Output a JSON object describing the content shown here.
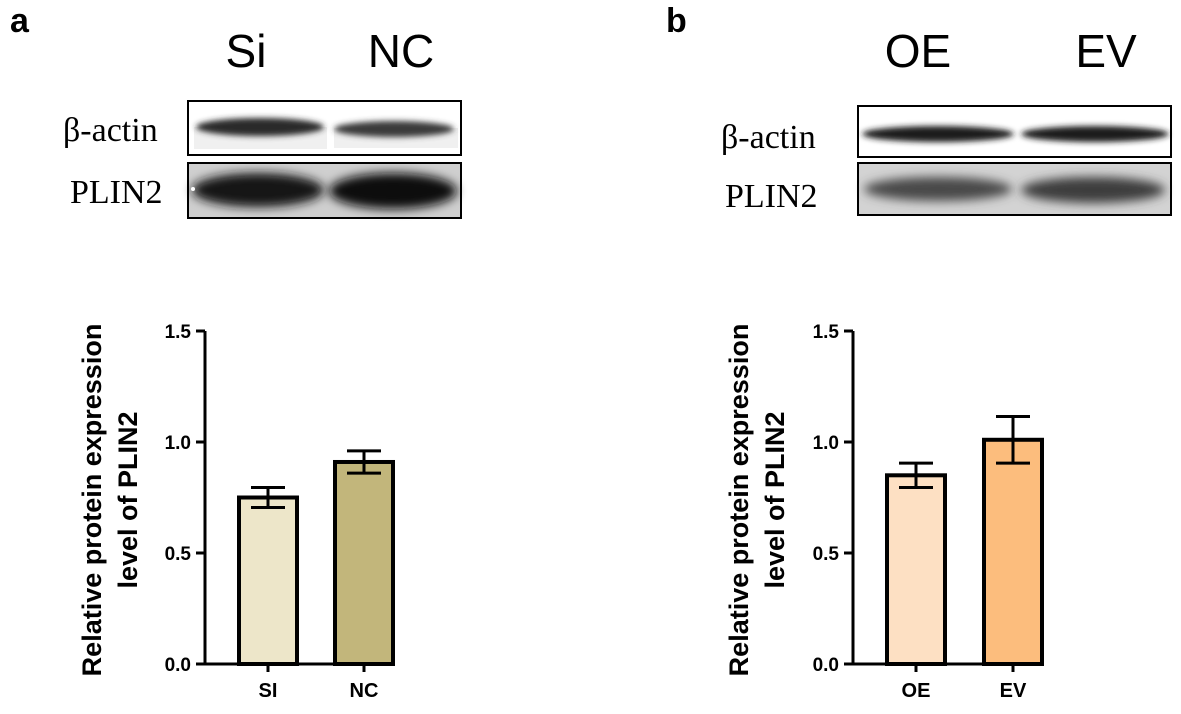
{
  "panels": [
    {
      "letter": "a",
      "lanes": [
        "Si",
        "NC"
      ],
      "blot_rows": [
        "β-actin",
        "PLIN2"
      ]
    },
    {
      "letter": "b",
      "lanes": [
        "OE",
        "EV"
      ],
      "blot_rows": [
        "β-actin",
        "PLIN2"
      ]
    }
  ],
  "chart_data": [
    {
      "type": "bar",
      "categories": [
        "SI",
        "NC"
      ],
      "values": [
        0.75,
        0.91
      ],
      "errors": [
        0.045,
        0.05
      ],
      "colors": [
        "#ede6c9",
        "#c2b67b"
      ],
      "title": "",
      "xlabel": "",
      "ylabel": [
        "Relative protein expression",
        "level of PLIN2"
      ],
      "ylim": [
        0,
        1.5
      ],
      "yticks": [
        "0.0",
        "0.5",
        "1.0",
        "1.5"
      ],
      "grid": false
    },
    {
      "type": "bar",
      "categories": [
        "OE",
        "EV"
      ],
      "values": [
        0.85,
        1.01
      ],
      "errors": [
        0.055,
        0.105
      ],
      "colors": [
        "#fde0c3",
        "#fcbd7d"
      ],
      "title": "",
      "xlabel": "",
      "ylabel": [
        "Relative protein expression",
        "level of PLIN2"
      ],
      "ylim": [
        0,
        1.5
      ],
      "yticks": [
        "0.0",
        "0.5",
        "1.0",
        "1.5"
      ],
      "grid": false
    }
  ]
}
